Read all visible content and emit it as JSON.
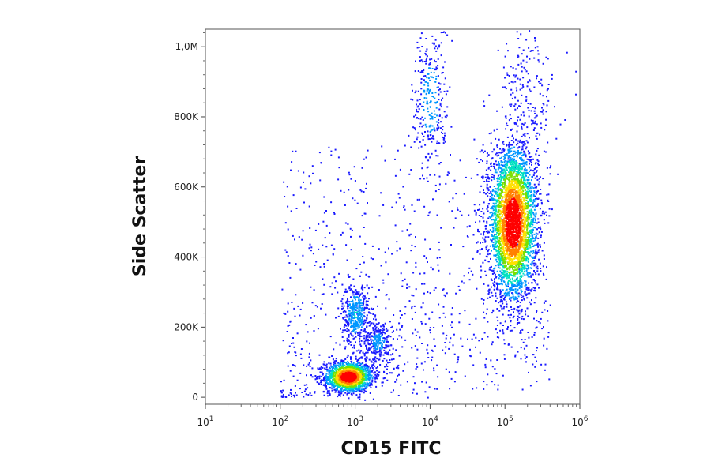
{
  "chart_data": {
    "type": "scatter",
    "title": "",
    "xlabel": "CD15 FITC",
    "ylabel": "Side Scatter",
    "x_scale": "log",
    "xlim": [
      10,
      1000000
    ],
    "ylim": [
      -20000,
      1050000
    ],
    "grid": false,
    "legend": "none",
    "x_ticks": [
      {
        "value": 10,
        "base": "10",
        "exp": "1"
      },
      {
        "value": 100,
        "base": "10",
        "exp": "2"
      },
      {
        "value": 1000,
        "base": "10",
        "exp": "3"
      },
      {
        "value": 10000,
        "base": "10",
        "exp": "4"
      },
      {
        "value": 100000,
        "base": "10",
        "exp": "5"
      },
      {
        "value": 1000000,
        "base": "10",
        "exp": "6"
      }
    ],
    "y_ticks": [
      {
        "value": 0,
        "label": "0"
      },
      {
        "value": 200000,
        "label": "200K"
      },
      {
        "value": 400000,
        "label": "400K"
      },
      {
        "value": 600000,
        "label": "600K"
      },
      {
        "value": 800000,
        "label": "800K"
      },
      {
        "value": 1000000,
        "label": "1,0M"
      }
    ],
    "density_colormap": [
      "#1a1aff",
      "#0096ff",
      "#00e0c0",
      "#7be000",
      "#ffe000",
      "#ff8000",
      "#ff0000"
    ],
    "populations": [
      {
        "x_center": 800,
        "y_center": 60000,
        "x_spread_decades": 0.16,
        "y_spread": 22000,
        "points": 1500
      },
      {
        "x_center": 1000,
        "y_center": 240000,
        "x_spread_decades": 0.09,
        "y_spread": 45000,
        "points": 420
      },
      {
        "x_center": 2000,
        "y_center": 160000,
        "x_spread_decades": 0.1,
        "y_spread": 30000,
        "points": 280
      },
      {
        "x_center": 125000,
        "y_center": 500000,
        "x_spread_decades": 0.16,
        "y_spread": 110000,
        "points": 3600
      },
      {
        "x_center": 10000,
        "y_center": 850000,
        "x_spread_decades": 0.12,
        "y_spread": 110000,
        "points": 300
      },
      {
        "x_center": 200000,
        "y_center": 880000,
        "x_spread_decades": 0.2,
        "y_spread": 100000,
        "points": 180
      }
    ]
  }
}
